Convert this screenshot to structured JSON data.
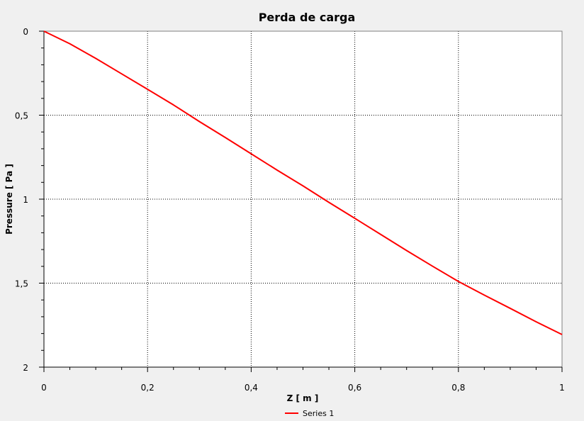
{
  "chart_data": {
    "type": "line",
    "title": "Perda de carga",
    "xlabel": "Z [ m ]",
    "ylabel": "Pressure [ Pa ]",
    "xlim": [
      0,
      1
    ],
    "ylim": [
      0,
      2
    ],
    "y_inverted": true,
    "xticks": [
      {
        "value": 0,
        "label": "0"
      },
      {
        "value": 0.2,
        "label": "0,2"
      },
      {
        "value": 0.4,
        "label": "0,4"
      },
      {
        "value": 0.6,
        "label": "0,6"
      },
      {
        "value": 0.8,
        "label": "0,8"
      },
      {
        "value": 1,
        "label": "1"
      }
    ],
    "yticks": [
      {
        "value": 0,
        "label": "0"
      },
      {
        "value": 0.5,
        "label": "0,5"
      },
      {
        "value": 1,
        "label": "1"
      },
      {
        "value": 1.5,
        "label": "1,5"
      },
      {
        "value": 2,
        "label": "2"
      }
    ],
    "grid": true,
    "legend_position": "bottom-center",
    "series": [
      {
        "name": "Series 1",
        "color": "#ff0000",
        "x": [
          0,
          0.05,
          0.1,
          0.15,
          0.2,
          0.25,
          0.3,
          0.35,
          0.4,
          0.45,
          0.5,
          0.55,
          0.6,
          0.65,
          0.7,
          0.75,
          0.8,
          0.85,
          0.9,
          0.95,
          1.0
        ],
        "y": [
          0,
          0.075,
          0.162,
          0.254,
          0.346,
          0.439,
          0.538,
          0.633,
          0.73,
          0.827,
          0.921,
          1.019,
          1.114,
          1.21,
          1.306,
          1.399,
          1.49,
          1.571,
          1.65,
          1.73,
          1.806
        ]
      }
    ]
  }
}
